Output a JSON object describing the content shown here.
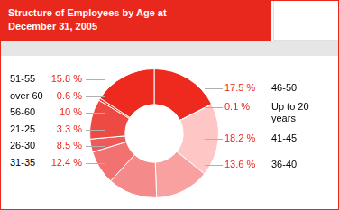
{
  "chart_data": {
    "type": "doughnut",
    "title": "Structure of Employees by Age at December 31, 2005",
    "categories": [
      "46-50",
      "Up to 20 years",
      "41-45",
      "36-40",
      "31-35",
      "26-30",
      "21-25",
      "56-60",
      "over 60",
      "51-55"
    ],
    "values": [
      17.5,
      0.1,
      18.2,
      13.6,
      12.4,
      8.5,
      3.3,
      10,
      0.6,
      15.8
    ],
    "value_labels": [
      "17.5 %",
      "0.1 %",
      "18.2 %",
      "13.6 %",
      "12.4 %",
      "8.5 %",
      "3.3 %",
      "10 %",
      "0.6 %",
      "15.8 %"
    ],
    "colors": [
      "#ee2a1e",
      "#f6b0b0",
      "#ffc6c6",
      "#f9a0a0",
      "#f58a8a",
      "#f27272",
      "#ee5a5a",
      "#ee4a44",
      "#ec3c34",
      "#ee2a1e"
    ],
    "data_labels": true
  }
}
